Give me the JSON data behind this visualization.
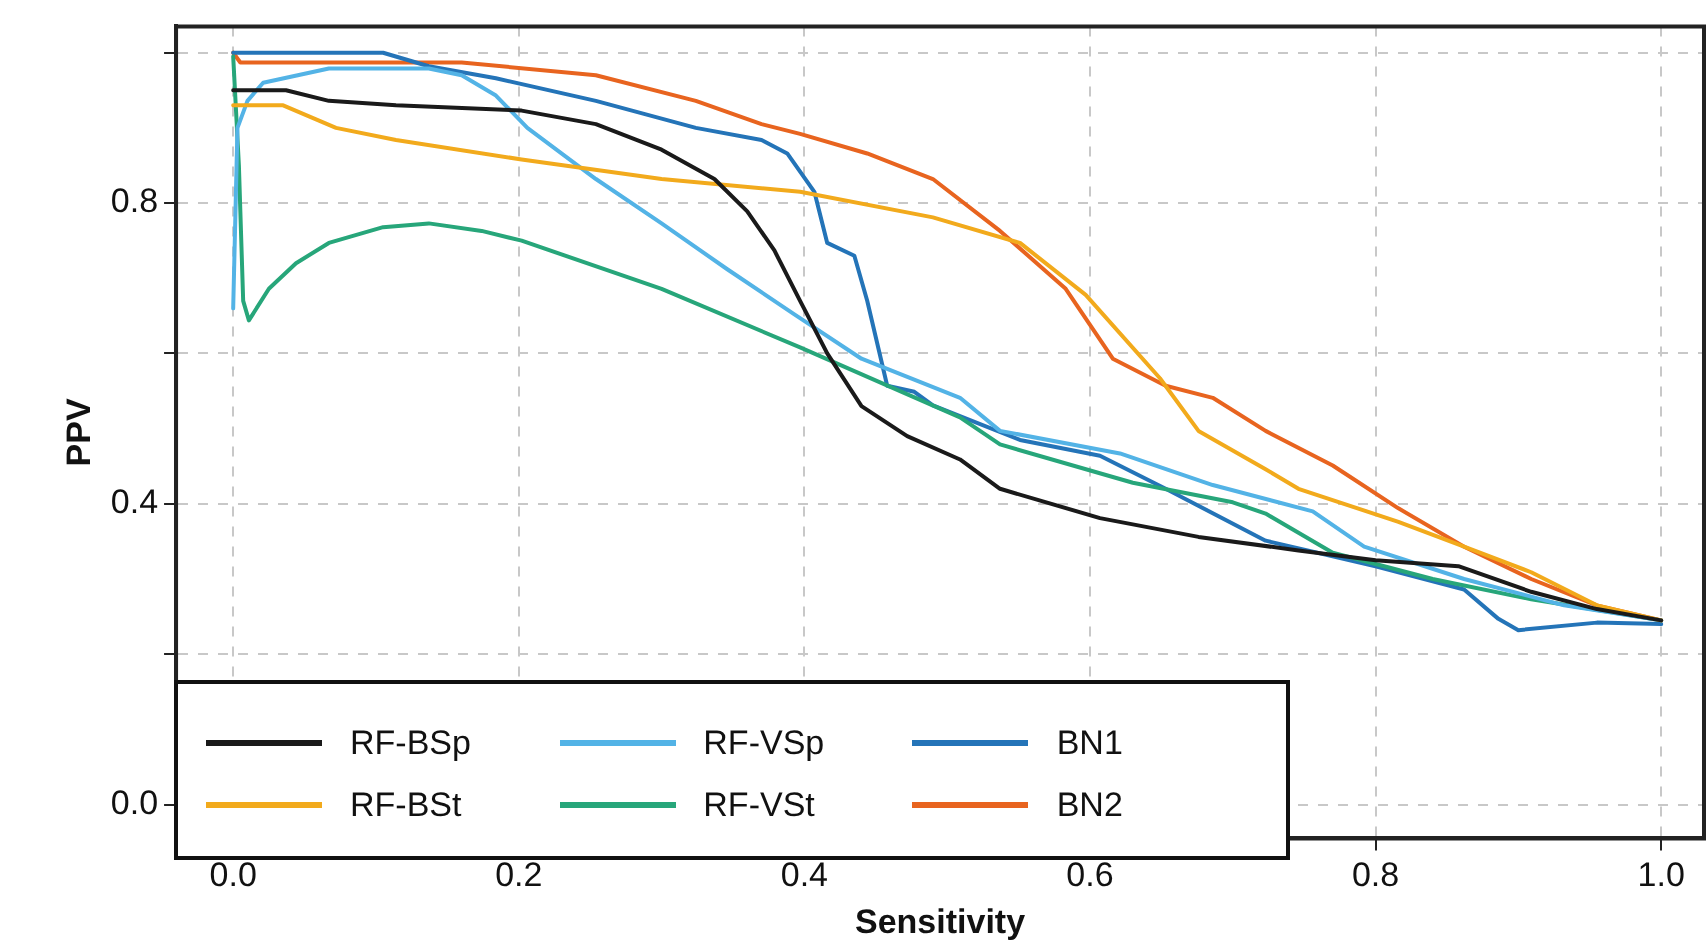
{
  "chart_data": {
    "type": "line",
    "xlabel": "Sensitivity",
    "ylabel": "PPV",
    "xlim": [
      -0.04,
      1.03
    ],
    "ylim": [
      -0.045,
      1.035
    ],
    "xticks": [
      {
        "value": 0,
        "label": "0.0"
      },
      0.2,
      0.4,
      0.6,
      0.8,
      {
        "value": 1,
        "label": "1.0"
      }
    ],
    "yticks": [
      {
        "value": 0,
        "label": "0.0"
      },
      {
        "value": 0.2,
        "label": null
      },
      0.4,
      {
        "value": 0.6,
        "label": null
      },
      0.8,
      {
        "value": 1,
        "label": null
      }
    ],
    "grid": true,
    "legend": "bottom left",
    "marker": "none",
    "line_style": "solid",
    "series": [
      {
        "name": "RF-BSp",
        "color": "#1a1a1a",
        "x": [
          0,
          0.037,
          0.067,
          0.114,
          0.202,
          0.254,
          0.3,
          0.337,
          0.36,
          0.379,
          0.397,
          0.416,
          0.44,
          0.472,
          0.509,
          0.537,
          0.607,
          0.676,
          0.746,
          0.8,
          0.858,
          0.909,
          0.955,
          1.0
        ],
        "values": [
          0.95,
          0.95,
          0.936,
          0.93,
          0.923,
          0.905,
          0.871,
          0.832,
          0.789,
          0.737,
          0.67,
          0.6,
          0.53,
          0.49,
          0.459,
          0.42,
          0.381,
          0.356,
          0.338,
          0.325,
          0.317,
          0.283,
          0.26,
          0.245
        ]
      },
      {
        "name": "RF-BSt",
        "color": "#f2aa1c",
        "x": [
          0,
          0.035,
          0.072,
          0.114,
          0.202,
          0.3,
          0.397,
          0.49,
          0.551,
          0.597,
          0.649,
          0.676,
          0.723,
          0.746,
          0.816,
          0.862,
          0.909,
          0.955,
          1.0
        ],
        "values": [
          0.93,
          0.93,
          0.9,
          0.884,
          0.858,
          0.832,
          0.815,
          0.781,
          0.747,
          0.678,
          0.567,
          0.497,
          0.446,
          0.42,
          0.376,
          0.343,
          0.309,
          0.265,
          0.245
        ]
      },
      {
        "name": "RF-VSp",
        "color": "#53b3e6",
        "x": [
          0,
          0.003,
          0.01,
          0.021,
          0.067,
          0.137,
          0.16,
          0.184,
          0.206,
          0.254,
          0.3,
          0.346,
          0.393,
          0.44,
          0.509,
          0.537,
          0.621,
          0.686,
          0.756,
          0.792,
          0.862,
          0.932,
          1.0
        ],
        "values": [
          0.66,
          0.9,
          0.936,
          0.96,
          0.979,
          0.979,
          0.97,
          0.943,
          0.9,
          0.832,
          0.773,
          0.712,
          0.652,
          0.593,
          0.541,
          0.497,
          0.467,
          0.425,
          0.39,
          0.343,
          0.3,
          0.265,
          0.245
        ]
      },
      {
        "name": "RF-VSt",
        "color": "#27a67a",
        "x": [
          0,
          0.004,
          0.007,
          0.011,
          0.025,
          0.044,
          0.067,
          0.105,
          0.137,
          0.174,
          0.202,
          0.3,
          0.397,
          0.509,
          0.537,
          0.63,
          0.7,
          0.723,
          0.77,
          0.84,
          0.909,
          1.0
        ],
        "values": [
          0.995,
          0.85,
          0.67,
          0.644,
          0.686,
          0.72,
          0.747,
          0.768,
          0.773,
          0.763,
          0.75,
          0.686,
          0.608,
          0.515,
          0.479,
          0.428,
          0.402,
          0.387,
          0.335,
          0.3,
          0.273,
          0.245
        ]
      },
      {
        "name": "BN1",
        "color": "#2474b8",
        "x": [
          0,
          0.105,
          0.137,
          0.184,
          0.254,
          0.324,
          0.37,
          0.388,
          0.407,
          0.416,
          0.435,
          0.444,
          0.458,
          0.477,
          0.49,
          0.551,
          0.607,
          0.653,
          0.723,
          0.8,
          0.862,
          0.886,
          0.9,
          0.955,
          1.0
        ],
        "values": [
          1.0,
          1.0,
          0.982,
          0.966,
          0.936,
          0.9,
          0.884,
          0.866,
          0.815,
          0.747,
          0.73,
          0.67,
          0.557,
          0.549,
          0.531,
          0.485,
          0.464,
          0.42,
          0.351,
          0.317,
          0.286,
          0.247,
          0.232,
          0.242,
          0.24
        ]
      },
      {
        "name": "BN2",
        "color": "#e8641f",
        "x": [
          0,
          0.005,
          0.16,
          0.254,
          0.324,
          0.37,
          0.397,
          0.444,
          0.49,
          0.537,
          0.583,
          0.616,
          0.653,
          0.686,
          0.723,
          0.77,
          0.816,
          0.862,
          0.909,
          0.955,
          1.0
        ],
        "values": [
          1.0,
          0.987,
          0.987,
          0.97,
          0.936,
          0.905,
          0.892,
          0.866,
          0.832,
          0.763,
          0.686,
          0.593,
          0.557,
          0.541,
          0.497,
          0.451,
          0.394,
          0.343,
          0.3,
          0.265,
          0.245
        ]
      }
    ]
  }
}
